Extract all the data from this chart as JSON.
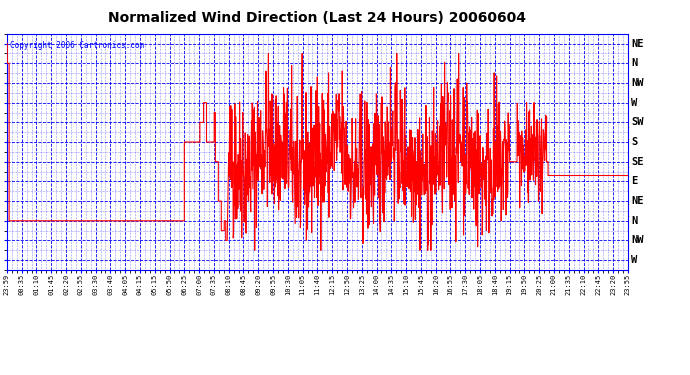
{
  "title": "Normalized Wind Direction (Last 24 Hours) 20060604",
  "copyright": "Copyright 2006 Cartronics.com",
  "plot_bg_color": "#ffffff",
  "figure_bg_color": "#ffffff",
  "line_color": "red",
  "grid_major_color": "#0000ff",
  "grid_minor_color": "#0000ff",
  "text_color": "blue",
  "title_color": "black",
  "border_color": "blue",
  "ytick_labels": [
    "NE",
    "N",
    "NW",
    "W",
    "SW",
    "S",
    "SE",
    "E",
    "NE",
    "N",
    "NW",
    "W"
  ],
  "ytick_values": [
    11,
    10,
    9,
    8,
    7,
    6,
    5,
    4,
    3,
    2,
    1,
    0
  ],
  "xtick_labels": [
    "23:59",
    "00:35",
    "01:10",
    "01:45",
    "02:20",
    "02:55",
    "03:30",
    "03:40",
    "04:05",
    "04:15",
    "05:15",
    "05:50",
    "06:25",
    "07:00",
    "07:35",
    "08:10",
    "08:45",
    "09:20",
    "09:55",
    "10:30",
    "11:05",
    "11:40",
    "12:15",
    "12:50",
    "13:25",
    "14:00",
    "14:35",
    "15:10",
    "15:45",
    "16:20",
    "16:55",
    "17:30",
    "18:05",
    "18:40",
    "19:15",
    "19:50",
    "20:25",
    "21:00",
    "21:35",
    "22:10",
    "22:45",
    "23:20",
    "23:55"
  ],
  "ylim": [
    -0.5,
    11.5
  ],
  "xlim": [
    0,
    42
  ]
}
